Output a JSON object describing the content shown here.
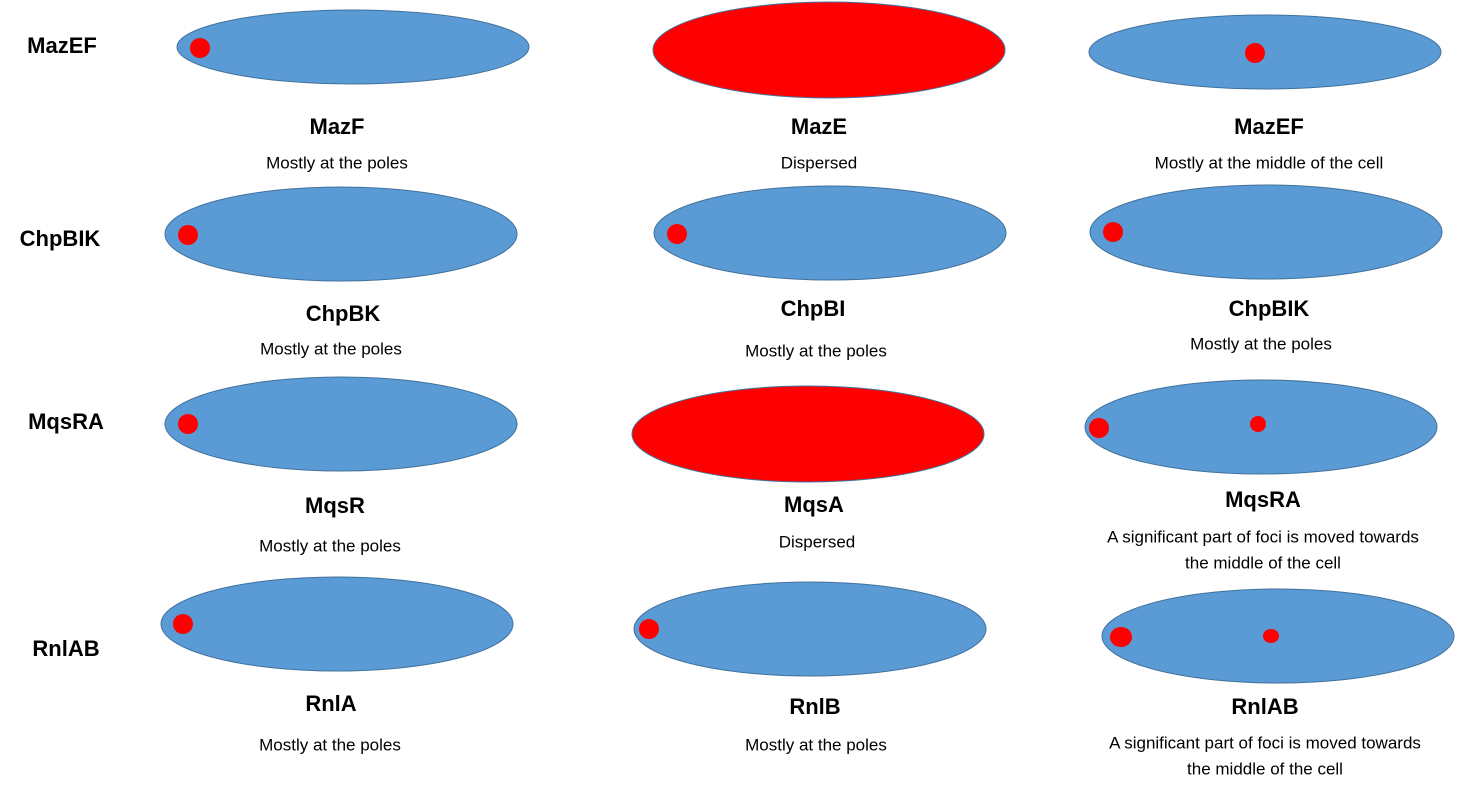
{
  "rows": [
    {
      "label": "MazEF",
      "cells": [
        {
          "title": "MazF",
          "description": [
            "Mostly at the poles"
          ]
        },
        {
          "title": "MazE",
          "description": [
            "Dispersed"
          ]
        },
        {
          "title": "MazEF",
          "description": [
            "Mostly at the middle of the cell"
          ]
        }
      ]
    },
    {
      "label": "ChpBIK",
      "cells": [
        {
          "title": "ChpBK",
          "description": [
            "Mostly at the poles"
          ]
        },
        {
          "title": "ChpBI",
          "description": [
            "Mostly at the poles"
          ]
        },
        {
          "title": "ChpBIK",
          "description": [
            "Mostly at the poles"
          ]
        }
      ]
    },
    {
      "label": "MqsRA",
      "cells": [
        {
          "title": "MqsR",
          "description": [
            "Mostly at the poles"
          ]
        },
        {
          "title": "MqsA",
          "description": [
            "Dispersed"
          ]
        },
        {
          "title": "MqsRA",
          "description": [
            "A significant part of foci is moved towards",
            "the middle of the cell"
          ]
        }
      ]
    },
    {
      "label": "RnlAB",
      "cells": [
        {
          "title": "RnlA",
          "description": [
            "Mostly at the poles"
          ]
        },
        {
          "title": "RnlB",
          "description": [
            "Mostly at the poles"
          ]
        },
        {
          "title": "RnlAB",
          "description": [
            "A significant part of foci is moved towards",
            "the middle of the cell"
          ]
        }
      ]
    }
  ]
}
